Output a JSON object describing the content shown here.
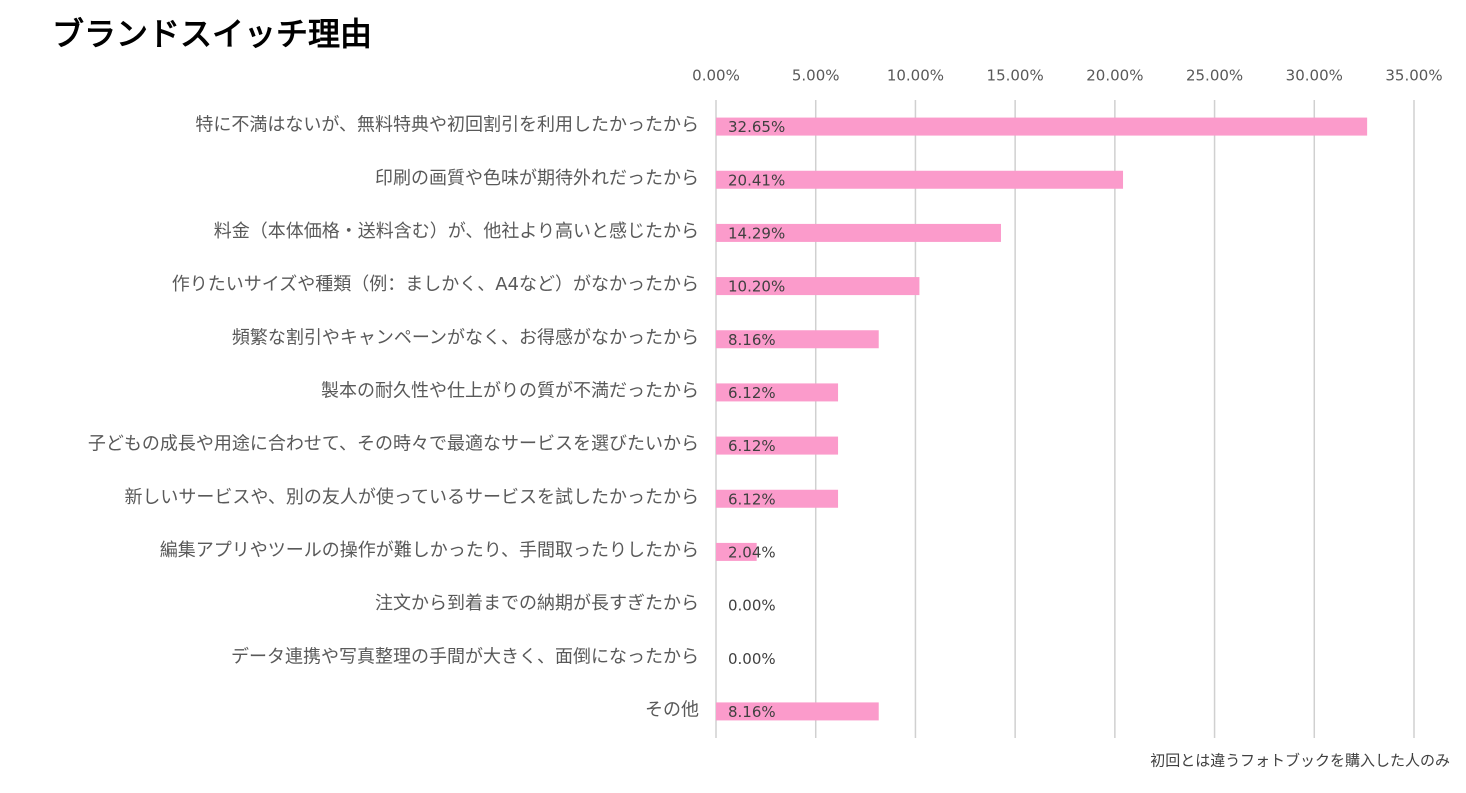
{
  "chart_data": {
    "type": "bar",
    "orientation": "horizontal",
    "title": "ブランドスイッチ理由",
    "note": "初回とは違うフォトブックを購入した人のみ",
    "categories": [
      "特に不満はないが、無料特典や初回割引を利用したかったから",
      "印刷の画質や色味が期待外れだったから",
      "料金（本体価格・送料含む）が、他社より高いと感じたから",
      "作りたいサイズや種類（例：ましかく、A4など）がなかったから",
      "頻繁な割引やキャンペーンがなく、お得感がなかったから",
      "製本の耐久性や仕上がりの質が不満だったから",
      "子どもの成長や用途に合わせて、その時々で最適なサービスを選びたいから",
      "新しいサービスや、別の友人が使っているサービスを試したかったから",
      "編集アプリやツールの操作が難しかったり、手間取ったりしたから",
      "注文から到着までの納期が長すぎたから",
      "データ連携や写真整理の手間が大きく、面倒になったから",
      "その他"
    ],
    "values": [
      32.65,
      20.41,
      14.29,
      10.2,
      8.16,
      6.12,
      6.12,
      6.12,
      2.04,
      0,
      0,
      8.16
    ],
    "value_labels": [
      "32.65%",
      "20.41%",
      "14.29%",
      "10.20%",
      "8.16%",
      "6.12%",
      "6.12%",
      "6.12%",
      "2.04%",
      "0.00%",
      "0.00%",
      "8.16%"
    ],
    "color": "#fb9bcb",
    "xlim": [
      0,
      35
    ],
    "xticks": [
      {
        "value": 0,
        "label": "0.00%"
      },
      {
        "value": 5,
        "label": "5.00%"
      },
      {
        "value": 10,
        "label": "10.00%"
      },
      {
        "value": 15,
        "label": "15.00%"
      },
      {
        "value": 20,
        "label": "20.00%"
      },
      {
        "value": 25,
        "label": "25.00%"
      },
      {
        "value": 30,
        "label": "30.00%"
      },
      {
        "value": 35,
        "label": "35.00%"
      }
    ],
    "grid": true
  }
}
